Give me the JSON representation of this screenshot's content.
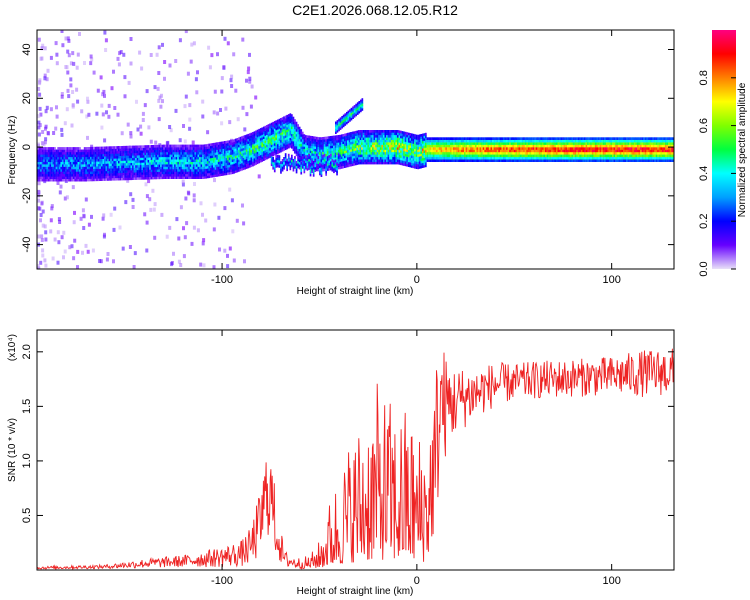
{
  "title": "C2E1.2026.068.12.05.R12",
  "chart_data": [
    {
      "type": "heatmap",
      "name": "spectrogram",
      "xlabel": "Height of straight line (km)",
      "ylabel": "Frequency (Hz)",
      "xlim": [
        -195,
        132
      ],
      "ylim": [
        -50,
        48
      ],
      "xticks": [
        -100,
        0,
        100
      ],
      "yticks": [
        -40,
        -20,
        0,
        20,
        40
      ],
      "colorbar": {
        "label": "Normalized spectral amplitude",
        "range": [
          0,
          1
        ],
        "ticks": [
          "0.0",
          "0.2",
          "0.4",
          "0.6",
          "0.8"
        ],
        "tick_values": [
          0.0,
          0.2,
          0.4,
          0.6,
          0.8
        ],
        "colormap": [
          "#e8e0f8",
          "#6600ff",
          "#0000ff",
          "#00a0ff",
          "#00ffff",
          "#00ff40",
          "#80ff00",
          "#ffff00",
          "#ff8000",
          "#ff0000",
          "#ff0080"
        ]
      },
      "ridge": {
        "x": [
          -195,
          -170,
          -150,
          -130,
          -110,
          -95,
          -85,
          -75,
          -65,
          -58,
          -50,
          -40,
          -30,
          -20,
          -10,
          0,
          5,
          20,
          50,
          80,
          110,
          132
        ],
        "frequency_hz": [
          -7,
          -7,
          -6.5,
          -6,
          -6,
          -4,
          -1,
          3,
          7,
          -2,
          -3,
          -2,
          0,
          0,
          0,
          -2,
          -1,
          -1,
          -1,
          -1,
          -1,
          -1
        ],
        "amplitude": [
          0.3,
          0.32,
          0.33,
          0.35,
          0.38,
          0.42,
          0.45,
          0.48,
          0.45,
          0.4,
          0.42,
          0.45,
          0.55,
          0.6,
          0.65,
          0.55,
          0.75,
          0.85,
          0.92,
          0.96,
          0.97,
          0.95
        ]
      }
    },
    {
      "type": "line",
      "name": "snr",
      "xlabel": "Height of straight line (km)",
      "ylabel": "SNR (10 * v/v)",
      "y_scale_label": "(x10⁴)",
      "xlim": [
        -195,
        132
      ],
      "ylim": [
        0,
        2.2
      ],
      "xticks": [
        -100,
        0,
        100
      ],
      "yticks": [
        0.5,
        1.0,
        1.5,
        2.0
      ],
      "ytick_labels": [
        "0.5",
        "1.0",
        "1.5",
        "2.0"
      ],
      "color": "#ee2222",
      "envelope_x": [
        -195,
        -160,
        -140,
        -120,
        -100,
        -90,
        -85,
        -80,
        -76,
        -72,
        -68,
        -62,
        -55,
        -50,
        -45,
        -40,
        -35,
        -30,
        -25,
        -20,
        -15,
        -10,
        -5,
        0,
        5,
        10,
        12,
        15,
        20,
        30,
        40,
        50,
        60,
        80,
        100,
        115,
        132
      ],
      "envelope_y": [
        0.02,
        0.03,
        0.06,
        0.08,
        0.12,
        0.15,
        0.22,
        0.45,
        0.8,
        0.35,
        0.1,
        0.06,
        0.08,
        0.15,
        0.35,
        0.5,
        0.65,
        0.75,
        0.85,
        0.95,
        0.9,
        0.8,
        0.85,
        0.7,
        0.75,
        1.2,
        1.5,
        1.5,
        1.55,
        1.62,
        1.7,
        1.72,
        1.74,
        1.76,
        1.78,
        1.8,
        1.82
      ],
      "noise_fraction": [
        0.6,
        0.6,
        0.7,
        0.7,
        0.8,
        0.8,
        0.8,
        0.7,
        0.6,
        0.7,
        0.8,
        0.8,
        0.8,
        0.9,
        0.9,
        0.9,
        0.9,
        0.9,
        0.9,
        0.9,
        0.9,
        0.9,
        0.9,
        0.9,
        0.9,
        0.6,
        0.5,
        0.3,
        0.2,
        0.15,
        0.12,
        0.1,
        0.1,
        0.1,
        0.1,
        0.12,
        0.12
      ]
    }
  ]
}
